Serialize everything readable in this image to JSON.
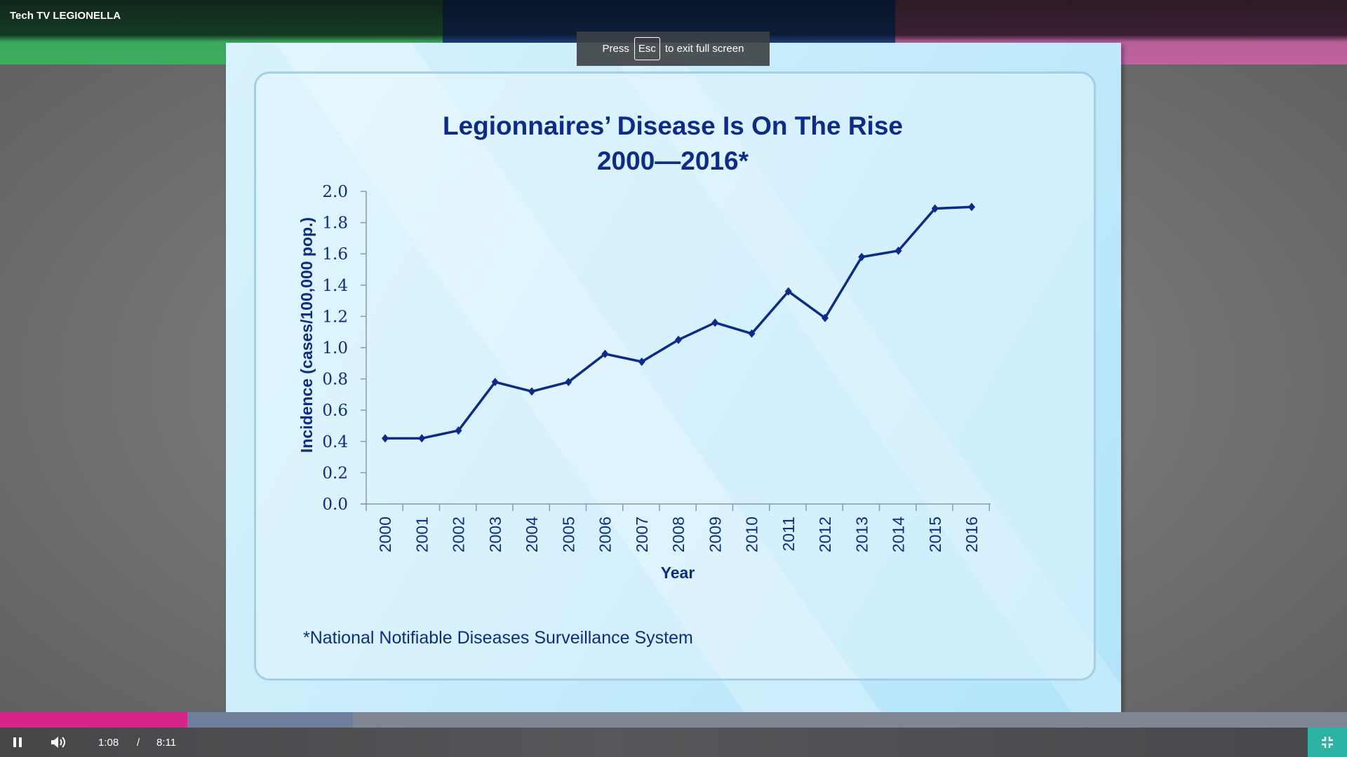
{
  "window": {
    "title": "Tech TV LEGIONELLA"
  },
  "notice": {
    "press": "Press",
    "key": "Esc",
    "rest": "to exit full screen"
  },
  "player": {
    "current_time": "1:08",
    "separator": "/",
    "duration": "8:11",
    "progress_percent": 13.9,
    "buffered_percent": 26.2,
    "play_state": "playing",
    "icons": [
      "pause-icon",
      "volume-icon",
      "exit-fullscreen-icon"
    ],
    "accent": "#d9228a"
  },
  "chart_data": {
    "type": "line",
    "title": "Legionnaires’ Disease Is On The Rise",
    "subtitle": "2000—2016*",
    "xlabel": "Year",
    "ylabel": "Incidence (cases/100,000 pop.)",
    "ylim": [
      0,
      2.0
    ],
    "yticks": [
      "0.0",
      "0.2",
      "0.4",
      "0.6",
      "0.8",
      "1.0",
      "1.2",
      "1.4",
      "1.6",
      "1.8",
      "2.0"
    ],
    "categories": [
      "2000",
      "2001",
      "2002",
      "2003",
      "2004",
      "2005",
      "2006",
      "2007",
      "2008",
      "2009",
      "2010",
      "2011",
      "2012",
      "2013",
      "2014",
      "2015",
      "2016"
    ],
    "values": [
      0.42,
      0.42,
      0.47,
      0.78,
      0.72,
      0.78,
      0.96,
      0.91,
      1.05,
      1.16,
      1.09,
      1.36,
      1.19,
      1.58,
      1.62,
      1.89,
      1.9
    ],
    "grid": false,
    "color": "#0b2a8f",
    "footnote": "*National Notifiable Diseases Surveillance System"
  }
}
